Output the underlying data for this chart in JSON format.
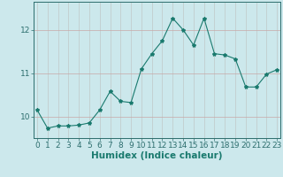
{
  "x": [
    0,
    1,
    2,
    3,
    4,
    5,
    6,
    7,
    8,
    9,
    10,
    11,
    12,
    13,
    14,
    15,
    16,
    17,
    18,
    19,
    20,
    21,
    22,
    23
  ],
  "y": [
    10.15,
    9.73,
    9.78,
    9.78,
    9.8,
    9.85,
    10.15,
    10.58,
    10.35,
    10.32,
    11.1,
    11.45,
    11.75,
    12.27,
    12.0,
    11.65,
    12.27,
    11.45,
    11.42,
    11.33,
    10.68,
    10.68,
    10.98,
    11.08
  ],
  "line_color": "#1a7a6e",
  "marker": "*",
  "marker_size": 3,
  "bg_color": "#cce8ec",
  "grid_color_h": "#c8a8a8",
  "grid_color_v": "#c0c8c8",
  "xlabel": "Humidex (Indice chaleur)",
  "yticks": [
    10,
    11,
    12
  ],
  "ylim": [
    9.5,
    12.65
  ],
  "xlim": [
    -0.3,
    23.3
  ],
  "xlabel_fontsize": 7.5,
  "tick_fontsize": 6.5,
  "axis_color": "#2d6e6e",
  "figsize": [
    3.2,
    2.0
  ],
  "dpi": 100
}
